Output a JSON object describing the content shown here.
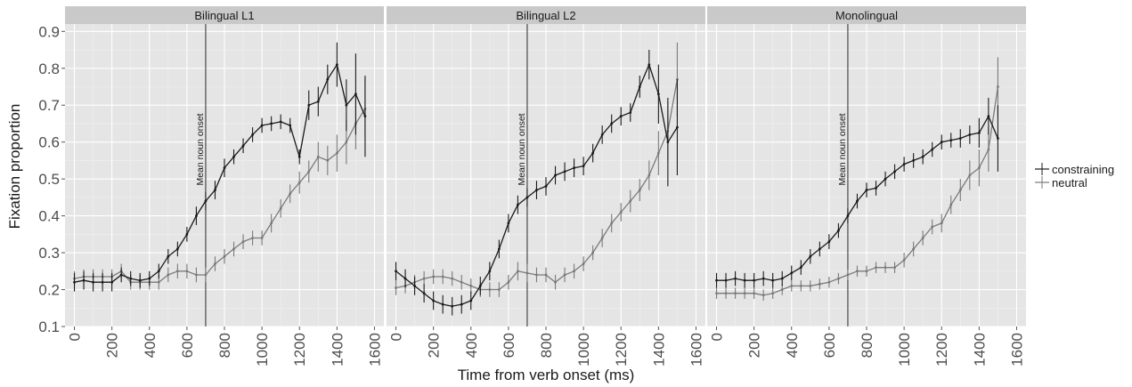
{
  "chart_data": {
    "type": "line",
    "xlabel": "Time from verb onset (ms)",
    "ylabel": "Fixation proportion",
    "xlim": [
      -50,
      1650
    ],
    "ylim": [
      0.1,
      0.92
    ],
    "xticks": [
      0,
      200,
      400,
      600,
      800,
      1000,
      1200,
      1400,
      1600
    ],
    "yticks": [
      0.1,
      0.2,
      0.3,
      0.4,
      0.5,
      0.6,
      0.7,
      0.8,
      0.9
    ],
    "grid": true,
    "legend_position": "right",
    "legend": [
      "constraining",
      "neutral"
    ],
    "series_colors": {
      "constraining": "#1a1a1a",
      "neutral": "#7a7a7a"
    },
    "vline": {
      "x": 700,
      "label": "Mean noun onset"
    },
    "panels": [
      {
        "title": "Bilingual L1",
        "series": [
          {
            "name": "constraining",
            "x": [
              0,
              50,
              100,
              150,
              200,
              250,
              300,
              350,
              400,
              450,
              500,
              550,
              600,
              650,
              700,
              750,
              800,
              850,
              900,
              950,
              1000,
              1050,
              1100,
              1150,
              1200,
              1250,
              1300,
              1350,
              1400,
              1450,
              1500,
              1550
            ],
            "y": [
              0.22,
              0.225,
              0.22,
              0.22,
              0.22,
              0.24,
              0.23,
              0.225,
              0.23,
              0.25,
              0.29,
              0.31,
              0.35,
              0.4,
              0.44,
              0.47,
              0.53,
              0.56,
              0.59,
              0.62,
              0.645,
              0.65,
              0.655,
              0.645,
              0.56,
              0.7,
              0.71,
              0.77,
              0.81,
              0.7,
              0.73,
              0.67
            ],
            "err": [
              0.025,
              0.025,
              0.025,
              0.025,
              0.025,
              0.02,
              0.02,
              0.02,
              0.02,
              0.02,
              0.02,
              0.02,
              0.02,
              0.025,
              0.025,
              0.025,
              0.025,
              0.02,
              0.02,
              0.02,
              0.02,
              0.02,
              0.02,
              0.02,
              0.02,
              0.04,
              0.04,
              0.04,
              0.06,
              0.07,
              0.11,
              0.11
            ]
          },
          {
            "name": "neutral",
            "x": [
              0,
              50,
              100,
              150,
              200,
              250,
              300,
              350,
              400,
              450,
              500,
              550,
              600,
              650,
              700,
              750,
              800,
              850,
              900,
              950,
              1000,
              1050,
              1100,
              1150,
              1200,
              1250,
              1300,
              1350,
              1400,
              1450,
              1500,
              1550
            ],
            "y": [
              0.23,
              0.235,
              0.235,
              0.235,
              0.235,
              0.25,
              0.22,
              0.22,
              0.22,
              0.22,
              0.24,
              0.25,
              0.25,
              0.24,
              0.24,
              0.27,
              0.29,
              0.31,
              0.33,
              0.34,
              0.34,
              0.38,
              0.42,
              0.46,
              0.49,
              0.52,
              0.56,
              0.55,
              0.57,
              0.6,
              0.65,
              0.69
            ],
            "err": [
              0.02,
              0.02,
              0.02,
              0.02,
              0.02,
              0.02,
              0.02,
              0.02,
              0.02,
              0.02,
              0.02,
              0.02,
              0.02,
              0.02,
              0.02,
              0.02,
              0.02,
              0.02,
              0.02,
              0.02,
              0.02,
              0.025,
              0.025,
              0.025,
              0.03,
              0.03,
              0.04,
              0.04,
              0.05,
              0.06,
              0.07,
              0.08
            ]
          }
        ]
      },
      {
        "title": "Bilingual L2",
        "series": [
          {
            "name": "constraining",
            "x": [
              0,
              50,
              100,
              150,
              200,
              250,
              300,
              350,
              400,
              450,
              500,
              550,
              600,
              650,
              700,
              750,
              800,
              850,
              900,
              950,
              1000,
              1050,
              1100,
              1150,
              1200,
              1250,
              1300,
              1350,
              1400,
              1450,
              1500
            ],
            "y": [
              0.25,
              0.23,
              0.21,
              0.19,
              0.17,
              0.16,
              0.155,
              0.16,
              0.17,
              0.21,
              0.25,
              0.31,
              0.38,
              0.43,
              0.45,
              0.47,
              0.48,
              0.51,
              0.52,
              0.53,
              0.535,
              0.57,
              0.62,
              0.65,
              0.67,
              0.68,
              0.75,
              0.81,
              0.73,
              0.6,
              0.64
            ],
            "err": [
              0.025,
              0.025,
              0.025,
              0.025,
              0.025,
              0.025,
              0.025,
              0.025,
              0.025,
              0.025,
              0.025,
              0.025,
              0.025,
              0.025,
              0.025,
              0.025,
              0.025,
              0.025,
              0.025,
              0.025,
              0.025,
              0.025,
              0.025,
              0.025,
              0.025,
              0.025,
              0.03,
              0.04,
              0.08,
              0.12,
              0.13
            ]
          },
          {
            "name": "neutral",
            "x": [
              0,
              50,
              100,
              150,
              200,
              250,
              300,
              350,
              400,
              450,
              500,
              550,
              600,
              650,
              700,
              750,
              800,
              850,
              900,
              950,
              1000,
              1050,
              1100,
              1150,
              1200,
              1250,
              1300,
              1350,
              1400,
              1450,
              1500
            ],
            "y": [
              0.205,
              0.21,
              0.22,
              0.23,
              0.235,
              0.235,
              0.23,
              0.22,
              0.21,
              0.2,
              0.2,
              0.2,
              0.22,
              0.25,
              0.245,
              0.24,
              0.24,
              0.22,
              0.24,
              0.25,
              0.27,
              0.3,
              0.34,
              0.38,
              0.41,
              0.44,
              0.47,
              0.51,
              0.57,
              0.63,
              0.77
            ],
            "err": [
              0.02,
              0.02,
              0.02,
              0.02,
              0.02,
              0.02,
              0.02,
              0.02,
              0.02,
              0.02,
              0.02,
              0.02,
              0.02,
              0.025,
              0.025,
              0.02,
              0.02,
              0.02,
              0.02,
              0.02,
              0.02,
              0.02,
              0.025,
              0.025,
              0.025,
              0.03,
              0.03,
              0.04,
              0.06,
              0.08,
              0.1
            ]
          }
        ]
      },
      {
        "title": "Monolingual",
        "series": [
          {
            "name": "constraining",
            "x": [
              0,
              50,
              100,
              150,
              200,
              250,
              300,
              350,
              400,
              450,
              500,
              550,
              600,
              650,
              700,
              750,
              800,
              850,
              900,
              950,
              1000,
              1050,
              1100,
              1150,
              1200,
              1250,
              1300,
              1350,
              1400,
              1450,
              1500
            ],
            "y": [
              0.225,
              0.225,
              0.23,
              0.225,
              0.225,
              0.23,
              0.225,
              0.23,
              0.245,
              0.26,
              0.29,
              0.31,
              0.33,
              0.36,
              0.4,
              0.44,
              0.47,
              0.475,
              0.5,
              0.52,
              0.54,
              0.55,
              0.56,
              0.58,
              0.6,
              0.605,
              0.61,
              0.62,
              0.625,
              0.67,
              0.61
            ],
            "err": [
              0.02,
              0.02,
              0.02,
              0.02,
              0.02,
              0.02,
              0.02,
              0.02,
              0.02,
              0.02,
              0.02,
              0.02,
              0.02,
              0.02,
              0.02,
              0.02,
              0.02,
              0.02,
              0.02,
              0.02,
              0.02,
              0.02,
              0.02,
              0.02,
              0.02,
              0.02,
              0.025,
              0.025,
              0.04,
              0.05,
              0.09
            ]
          },
          {
            "name": "neutral",
            "x": [
              0,
              50,
              100,
              150,
              200,
              250,
              300,
              350,
              400,
              450,
              500,
              550,
              600,
              650,
              700,
              750,
              800,
              850,
              900,
              950,
              1000,
              1050,
              1100,
              1150,
              1200,
              1250,
              1300,
              1350,
              1400,
              1450,
              1500
            ],
            "y": [
              0.19,
              0.19,
              0.19,
              0.19,
              0.19,
              0.185,
              0.19,
              0.2,
              0.21,
              0.21,
              0.21,
              0.215,
              0.22,
              0.23,
              0.24,
              0.25,
              0.25,
              0.26,
              0.26,
              0.26,
              0.28,
              0.31,
              0.34,
              0.37,
              0.38,
              0.43,
              0.47,
              0.51,
              0.53,
              0.58,
              0.75
            ],
            "err": [
              0.015,
              0.015,
              0.015,
              0.015,
              0.015,
              0.015,
              0.015,
              0.015,
              0.015,
              0.015,
              0.015,
              0.015,
              0.015,
              0.015,
              0.015,
              0.015,
              0.015,
              0.015,
              0.015,
              0.015,
              0.02,
              0.02,
              0.02,
              0.02,
              0.025,
              0.025,
              0.03,
              0.04,
              0.05,
              0.06,
              0.08
            ]
          }
        ]
      }
    ]
  }
}
